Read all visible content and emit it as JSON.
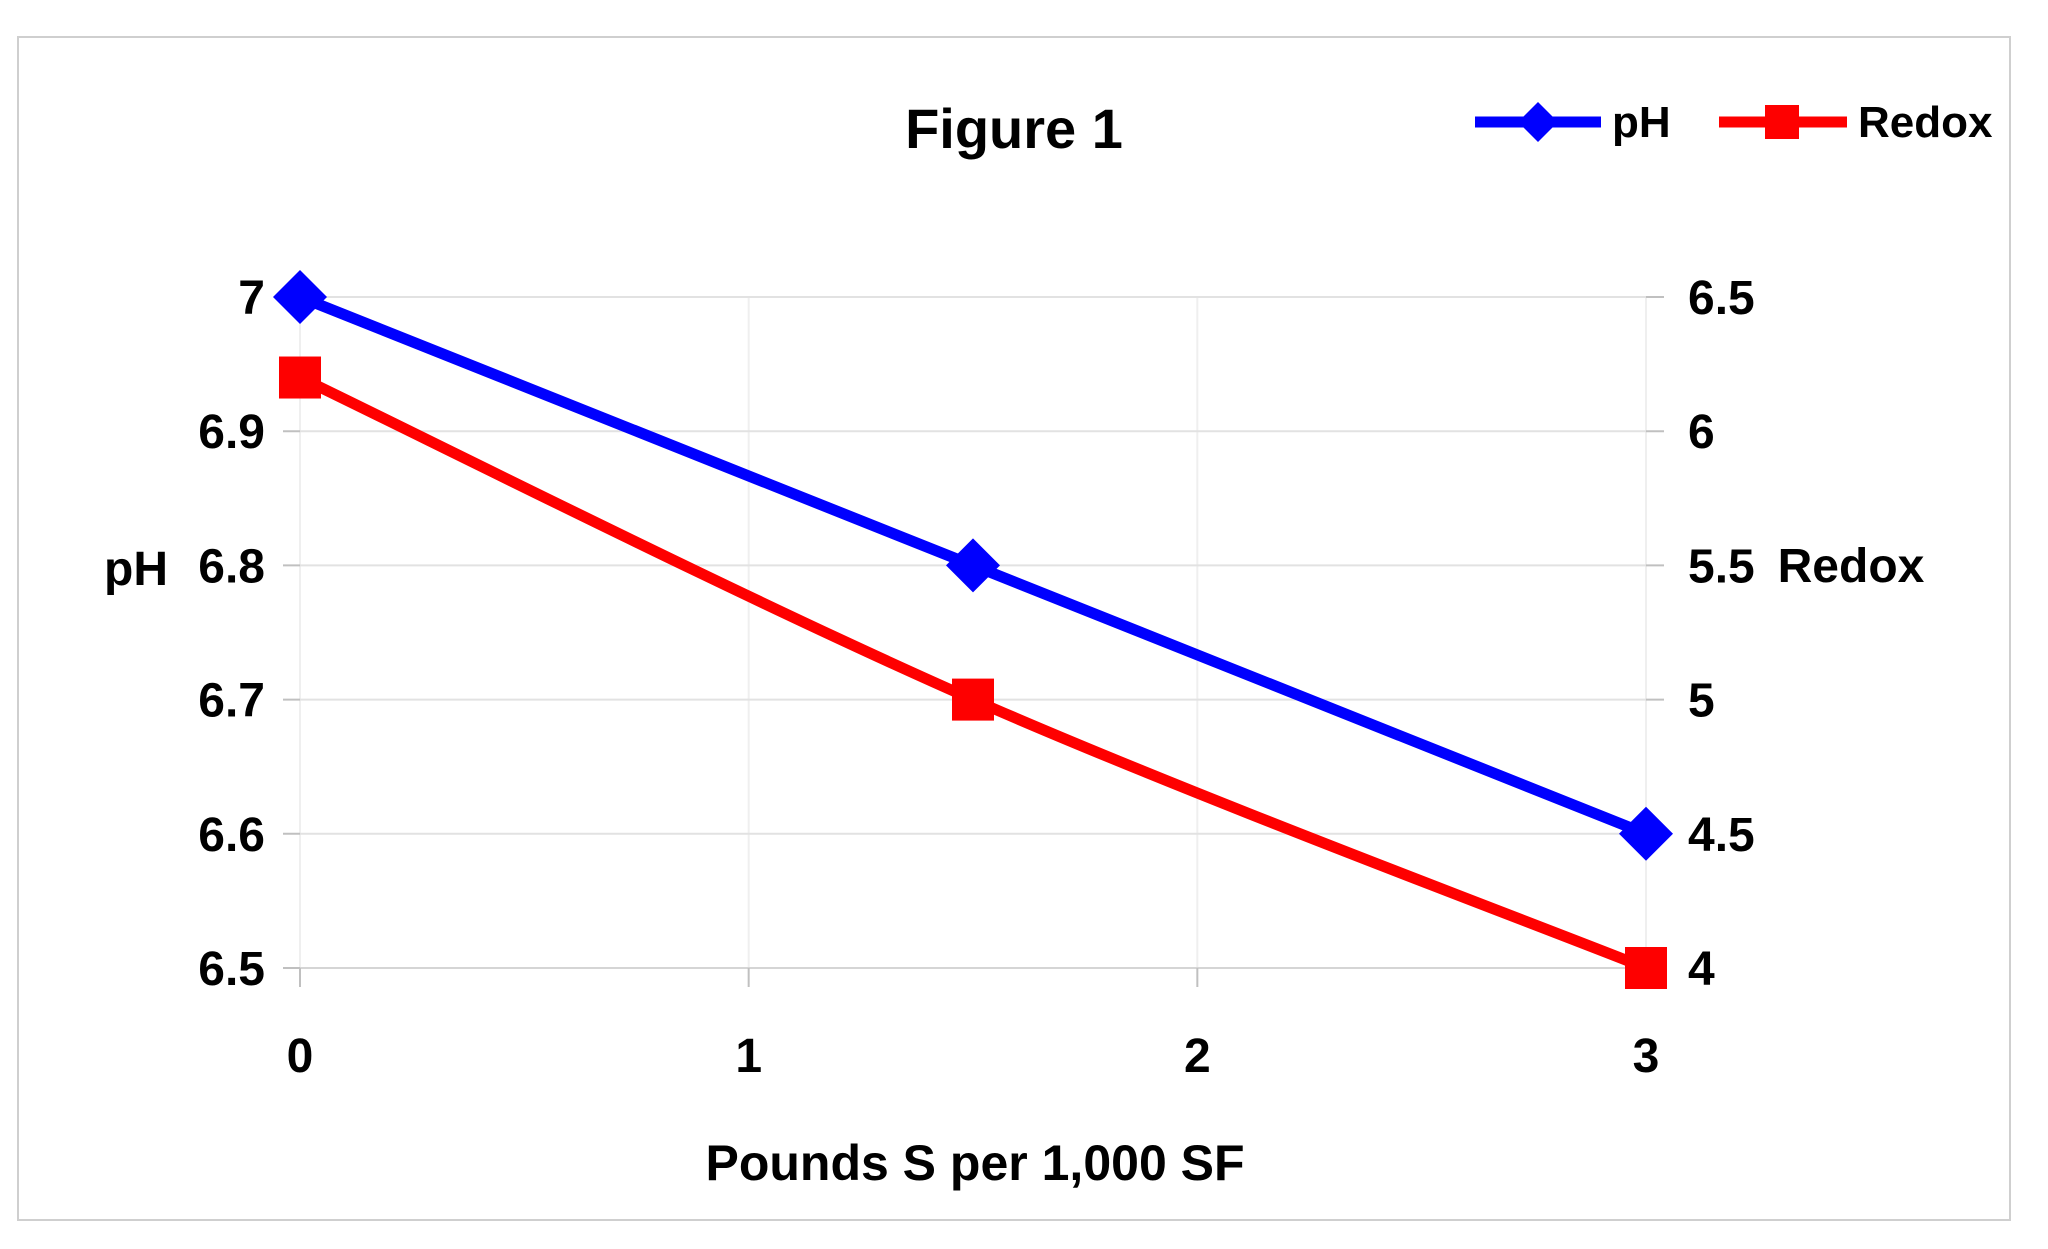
{
  "figure": {
    "background_color": "#FFFFFF",
    "border_color": "#CFCFCF"
  },
  "chart_data": {
    "type": "line",
    "title": "Figure 1",
    "xlabel": "Pounds S per 1,000 SF",
    "x": [
      0,
      1.5,
      3
    ],
    "x_ticks": [
      0,
      1,
      2,
      3
    ],
    "x_tick_labels": [
      "0",
      "1",
      "2",
      "3"
    ],
    "xlim": [
      0,
      3
    ],
    "grid": true,
    "line_style": "smooth",
    "legend_position": "top-right",
    "series": [
      {
        "name": "pH",
        "axis": "left",
        "values": [
          7.0,
          6.8,
          6.6
        ],
        "color": "#0000FE",
        "marker": "diamond"
      },
      {
        "name": "Redox",
        "axis": "right",
        "values": [
          6.2,
          5.0,
          4.0
        ],
        "color": "#FE0000",
        "marker": "square"
      }
    ],
    "left_axis": {
      "label": "pH",
      "min": 6.5,
      "max": 7.0,
      "ticks": [
        7.0,
        6.9,
        6.8,
        6.7,
        6.6,
        6.5
      ],
      "tick_labels": [
        "7",
        "6.9",
        "6.8",
        "6.7",
        "6.6",
        "6.5"
      ]
    },
    "right_axis": {
      "label": "Redox",
      "min": 4.0,
      "max": 6.5,
      "ticks": [
        6.5,
        6.0,
        5.5,
        5.0,
        4.5,
        4.0
      ],
      "tick_labels": [
        "6.5",
        "6",
        "5.5",
        "5",
        "4.5",
        "4"
      ]
    }
  },
  "legend": {
    "items": [
      {
        "label": "pH",
        "color": "#0000FE",
        "marker": "diamond"
      },
      {
        "label": "Redox",
        "color": "#FE0000",
        "marker": "square"
      }
    ]
  },
  "style": {
    "gridline_color": "#E2E2E2",
    "vertical_gridline_color": "#EFEFEF",
    "axis_line_color": "#D5D5D5",
    "tick_color": "#C0C0C0",
    "text_color": "#000000"
  }
}
